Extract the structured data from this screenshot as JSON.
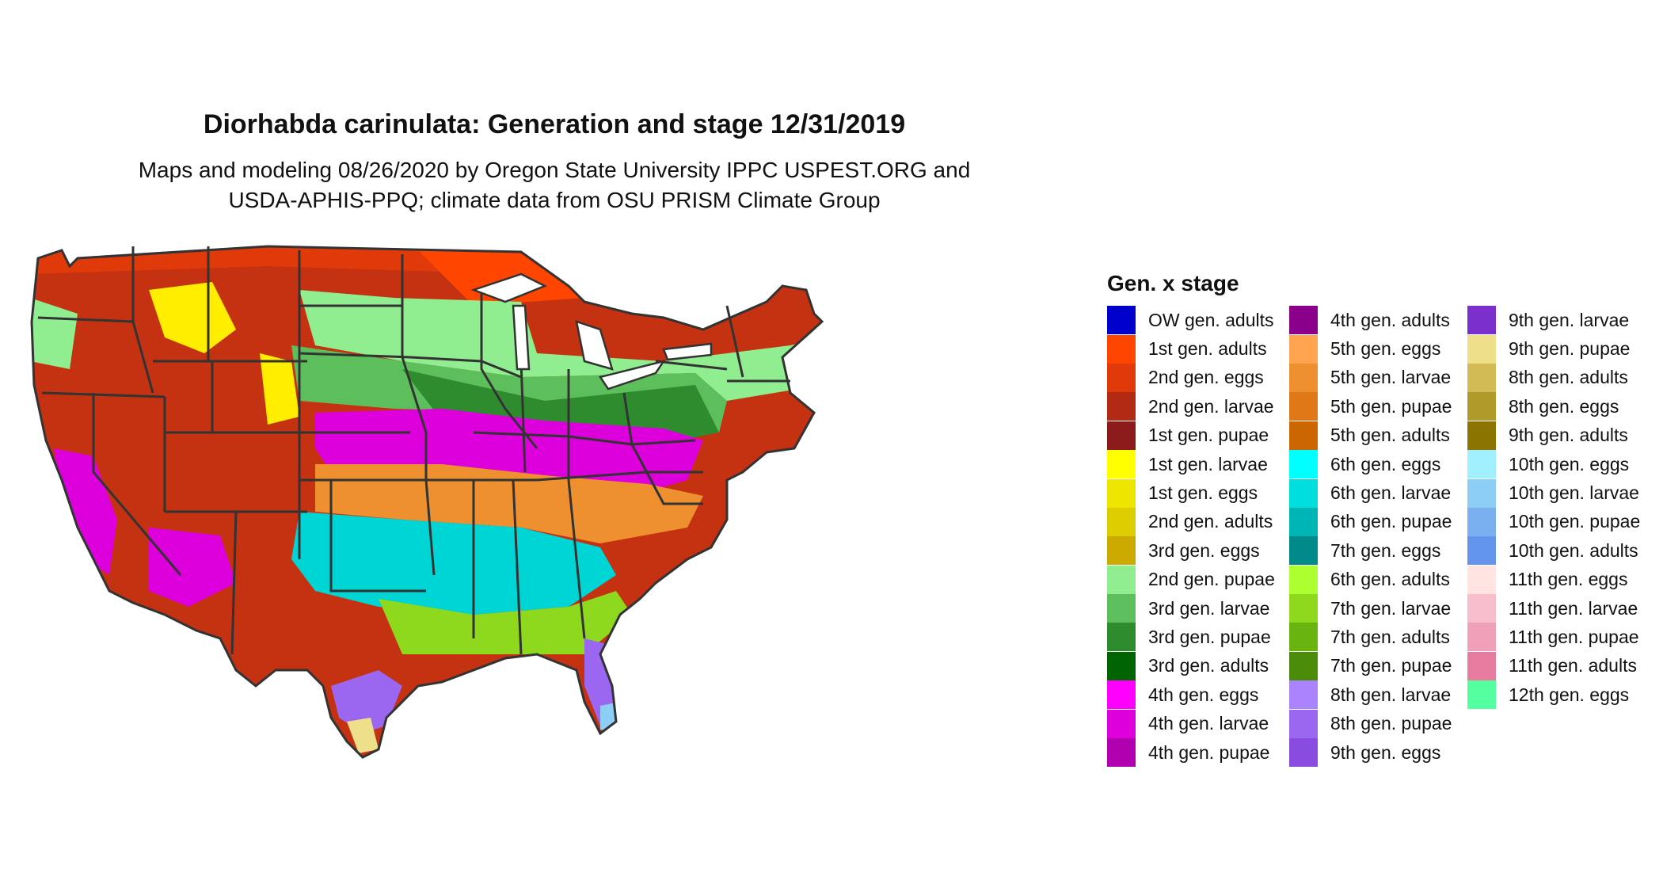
{
  "title": "Diorhabda carinulata: Generation and stage 12/31/2019",
  "subtitle_lines": [
    "Maps and modeling 08/26/2020 by Oregon State University IPPC USPEST.ORG and",
    "USDA-APHIS-PPQ; climate data from OSU PRISM Climate Group"
  ],
  "legend": {
    "title": "Gen. x stage",
    "columns": [
      [
        {
          "label": "OW gen. adults",
          "color": "#0000CC"
        },
        {
          "label": "1st gen. adults",
          "color": "#FF4500"
        },
        {
          "label": "2nd gen. eggs",
          "color": "#E03A0A"
        },
        {
          "label": "2nd gen. larvae",
          "color": "#B22A14"
        },
        {
          "label": "1st gen. pupae",
          "color": "#8B1A1A"
        },
        {
          "label": "1st gen. larvae",
          "color": "#FFFF00"
        },
        {
          "label": "1st gen. eggs",
          "color": "#EEE600"
        },
        {
          "label": "2nd gen. adults",
          "color": "#DDCC00"
        },
        {
          "label": "3rd gen. eggs",
          "color": "#CCAA00"
        },
        {
          "label": "2nd gen. pupae",
          "color": "#90EE90"
        },
        {
          "label": "3rd gen. larvae",
          "color": "#5CBF5C"
        },
        {
          "label": "3rd gen. pupae",
          "color": "#2E8B2E"
        },
        {
          "label": "3rd gen. adults",
          "color": "#006400"
        },
        {
          "label": "4th gen. eggs",
          "color": "#FF00FF"
        },
        {
          "label": "4th gen. larvae",
          "color": "#DD00DD"
        },
        {
          "label": "4th gen. pupae",
          "color": "#B000B0"
        }
      ],
      [
        {
          "label": "4th gen. adults",
          "color": "#8B008B"
        },
        {
          "label": "5th gen. eggs",
          "color": "#FFA54F"
        },
        {
          "label": "5th gen. larvae",
          "color": "#EE9030"
        },
        {
          "label": "5th gen. pupae",
          "color": "#E07818"
        },
        {
          "label": "5th gen. adults",
          "color": "#CC6600"
        },
        {
          "label": "6th gen. eggs",
          "color": "#00FFFF"
        },
        {
          "label": "6th gen. larvae",
          "color": "#00DDDD"
        },
        {
          "label": "6th gen. pupae",
          "color": "#00B5B5"
        },
        {
          "label": "7th gen. eggs",
          "color": "#008B8B"
        },
        {
          "label": "6th gen. adults",
          "color": "#ADFF2F"
        },
        {
          "label": "7th gen. larvae",
          "color": "#8ED81E"
        },
        {
          "label": "7th gen. adults",
          "color": "#6AB410"
        },
        {
          "label": "7th gen. pupae",
          "color": "#4A8B0A"
        },
        {
          "label": "8th gen. larvae",
          "color": "#AB82FF"
        },
        {
          "label": "8th gen. pupae",
          "color": "#9B66F0"
        },
        {
          "label": "9th gen. eggs",
          "color": "#8A4BE0"
        }
      ],
      [
        {
          "label": "9th gen. larvae",
          "color": "#7B2FCC"
        },
        {
          "label": "9th gen. pupae",
          "color": "#EEE08A"
        },
        {
          "label": "8th gen. adults",
          "color": "#D2BB55"
        },
        {
          "label": "8th gen. eggs",
          "color": "#B09A2A"
        },
        {
          "label": "9th gen. adults",
          "color": "#8B7500"
        },
        {
          "label": "10th gen. eggs",
          "color": "#A0F0FF"
        },
        {
          "label": "10th gen. larvae",
          "color": "#8CCEF5"
        },
        {
          "label": "10th gen. pupae",
          "color": "#7AB0F0"
        },
        {
          "label": "10th gen. adults",
          "color": "#6495ED"
        },
        {
          "label": "11th gen. eggs",
          "color": "#FFE4E1"
        },
        {
          "label": "11th gen. larvae",
          "color": "#F7BFCB"
        },
        {
          "label": "11th gen. pupae",
          "color": "#F0A0B8"
        },
        {
          "label": "11th gen. adults",
          "color": "#E87BA0"
        },
        {
          "label": "12th gen. eggs",
          "color": "#54FF9F"
        }
      ]
    ]
  },
  "map_colors": {
    "red": "#C43212",
    "red_orange": "#E03A0A",
    "orange_red": "#FF4500",
    "yellow": "#FFEE00",
    "light_green": "#90EE90",
    "mid_green": "#5CBF5C",
    "dark_green": "#2E8B2E",
    "magenta": "#DD00DD",
    "orange": "#EE9030",
    "cyan": "#00D5D5",
    "lime": "#8ED81E",
    "purple": "#9B66F0",
    "light_blue": "#8CCEF5",
    "tan": "#EEE08A",
    "border": "#333333"
  }
}
